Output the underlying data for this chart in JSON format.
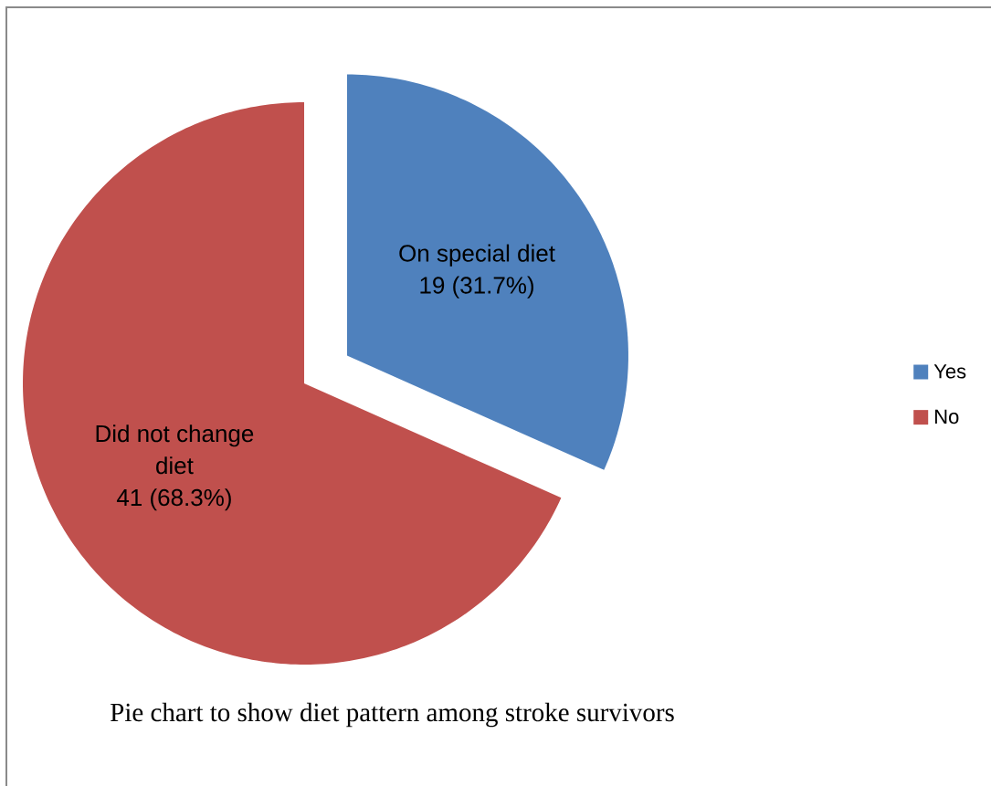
{
  "chart_data": {
    "type": "pie",
    "categories": [
      "Yes",
      "No"
    ],
    "values": [
      19,
      41
    ],
    "colors": [
      "#4f81bd",
      "#c0504d"
    ],
    "value_labels": [
      "19 (31.7%)",
      "41 (68.3%)"
    ],
    "legend": "right",
    "annotations": [
      {
        "text": "On special diet",
        "x": "Yes"
      },
      {
        "text": "Did not change diet",
        "x": "No"
      },
      "Pie chart to show diet pattern among stroke survivors"
    ]
  }
}
